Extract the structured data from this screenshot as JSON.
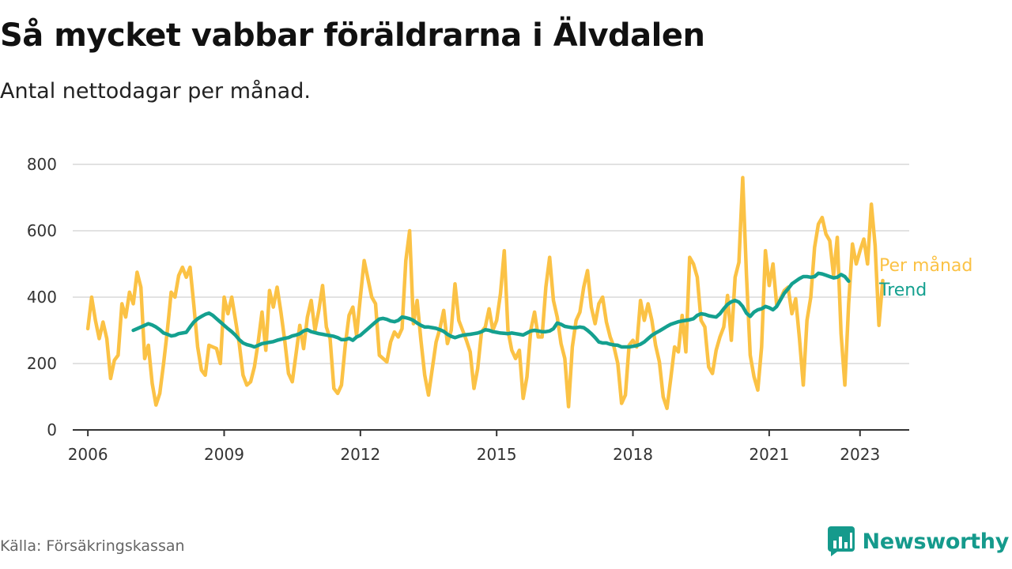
{
  "title": "Så mycket vabbar föräldrarna i Älvdalen",
  "subtitle": "Antal nettodagar per månad.",
  "source": "Källa: Försäkringskassan",
  "brand": "Newsworthy",
  "colors": {
    "monthly": "#fbc245",
    "trend": "#14a08f",
    "grid": "#d9d9d9",
    "axis": "#333333",
    "brand": "#159a8c"
  },
  "chart_data": {
    "type": "line",
    "x_unit": "months since 2006-01",
    "xlim": [
      -4,
      217
    ],
    "ylim": [
      0,
      800
    ],
    "yticks": [
      0,
      200,
      400,
      600,
      800
    ],
    "xticks": [
      {
        "x": 0,
        "label": "2006"
      },
      {
        "x": 36,
        "label": "2009"
      },
      {
        "x": 72,
        "label": "2012"
      },
      {
        "x": 108,
        "label": "2015"
      },
      {
        "x": 144,
        "label": "2018"
      },
      {
        "x": 180,
        "label": "2021"
      },
      {
        "x": 204,
        "label": "2023"
      }
    ],
    "series": [
      {
        "name": "Per månad",
        "start": 0,
        "values": [
          305,
          400,
          330,
          275,
          325,
          275,
          155,
          210,
          225,
          380,
          340,
          415,
          380,
          475,
          430,
          215,
          255,
          140,
          75,
          110,
          200,
          300,
          415,
          400,
          465,
          490,
          460,
          490,
          375,
          250,
          180,
          165,
          255,
          250,
          245,
          200,
          400,
          350,
          400,
          330,
          260,
          165,
          135,
          145,
          190,
          265,
          355,
          240,
          420,
          370,
          430,
          355,
          270,
          170,
          145,
          230,
          315,
          245,
          340,
          390,
          300,
          360,
          435,
          310,
          275,
          125,
          110,
          135,
          255,
          345,
          370,
          285,
          400,
          510,
          455,
          400,
          380,
          225,
          215,
          205,
          265,
          295,
          280,
          305,
          510,
          600,
          320,
          390,
          270,
          165,
          105,
          185,
          265,
          305,
          360,
          260,
          300,
          440,
          330,
          300,
          270,
          235,
          125,
          185,
          295,
          310,
          365,
          300,
          330,
          410,
          540,
          300,
          240,
          215,
          240,
          95,
          160,
          300,
          355,
          280,
          280,
          430,
          520,
          390,
          340,
          260,
          215,
          70,
          250,
          330,
          355,
          430,
          480,
          370,
          320,
          380,
          400,
          325,
          280,
          250,
          200,
          80,
          105,
          255,
          270,
          250,
          390,
          330,
          380,
          330,
          255,
          205,
          100,
          65,
          155,
          250,
          235,
          345,
          235,
          520,
          500,
          460,
          330,
          310,
          190,
          170,
          240,
          280,
          310,
          405,
          270,
          460,
          505,
          760,
          470,
          225,
          160,
          120,
          250,
          540,
          435,
          500,
          375,
          395,
          420,
          430,
          350,
          395,
          275,
          135,
          330,
          400,
          550,
          620,
          640,
          590,
          570,
          465,
          580,
          290,
          135,
          380,
          560,
          500,
          540,
          575,
          500,
          680,
          555,
          315,
          450
        ]
      },
      {
        "name": "Trend",
        "start": 12,
        "values": [
          300,
          305,
          310,
          315,
          320,
          316,
          310,
          302,
          292,
          288,
          283,
          285,
          290,
          292,
          294,
          310,
          325,
          335,
          342,
          348,
          352,
          345,
          335,
          325,
          315,
          305,
          296,
          285,
          272,
          262,
          257,
          254,
          250,
          255,
          260,
          262,
          264,
          266,
          270,
          273,
          276,
          278,
          283,
          286,
          290,
          298,
          302,
          296,
          293,
          290,
          288,
          286,
          284,
          282,
          278,
          272,
          272,
          276,
          270,
          280,
          285,
          295,
          305,
          315,
          325,
          334,
          336,
          333,
          328,
          326,
          330,
          340,
          338,
          335,
          330,
          322,
          315,
          310,
          310,
          308,
          306,
          302,
          297,
          288,
          282,
          278,
          282,
          285,
          287,
          288,
          290,
          292,
          296,
          302,
          300,
          296,
          294,
          292,
          291,
          290,
          292,
          290,
          288,
          286,
          292,
          298,
          300,
          298,
          296,
          296,
          298,
          305,
          322,
          318,
          312,
          310,
          308,
          308,
          310,
          308,
          300,
          290,
          278,
          265,
          262,
          262,
          258,
          256,
          255,
          250,
          250,
          250,
          252,
          254,
          258,
          265,
          275,
          285,
          292,
          298,
          305,
          312,
          318,
          322,
          326,
          328,
          330,
          332,
          335,
          345,
          350,
          348,
          344,
          342,
          340,
          350,
          365,
          378,
          386,
          390,
          385,
          372,
          352,
          342,
          355,
          362,
          365,
          372,
          368,
          362,
          372,
          392,
          412,
          425,
          440,
          448,
          456,
          462,
          462,
          460,
          462,
          472,
          470,
          466,
          462,
          458,
          460,
          468,
          462,
          448
        ]
      }
    ],
    "legend": "right-end",
    "grid": "horizontal"
  }
}
